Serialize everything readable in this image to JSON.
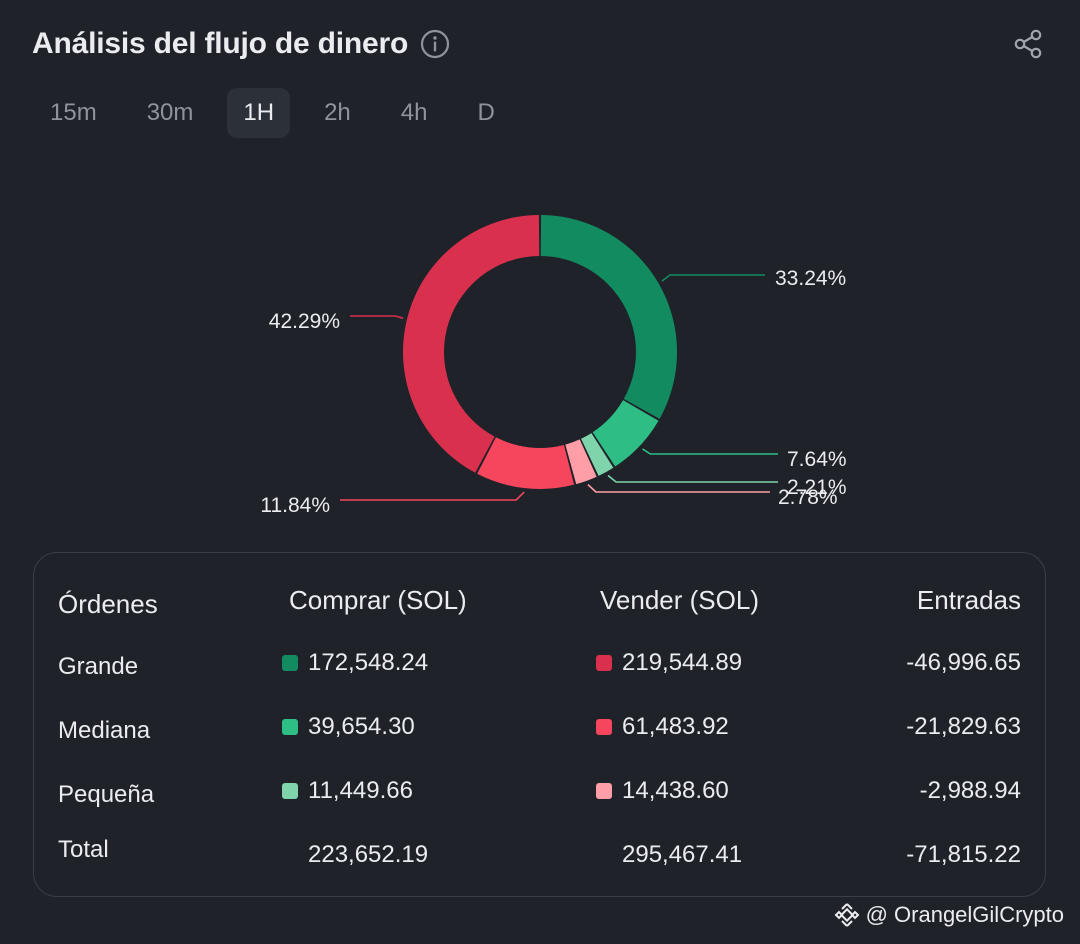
{
  "header": {
    "title": "Análisis del flujo de dinero",
    "info_icon": "info-icon",
    "share_icon": "share-icon"
  },
  "tabs": [
    {
      "label": "15m",
      "active": false
    },
    {
      "label": "30m",
      "active": false
    },
    {
      "label": "1H",
      "active": true
    },
    {
      "label": "2h",
      "active": false
    },
    {
      "label": "4h",
      "active": false
    },
    {
      "label": "D",
      "active": false
    }
  ],
  "colors": {
    "buy_large": "#118b5f",
    "buy_medium": "#2ebd85",
    "buy_small": "#7fd4ab",
    "sell_large": "#d9304e",
    "sell_medium": "#f6465d",
    "sell_small": "#ff9ea6",
    "background": "#1f2229"
  },
  "chart_data": {
    "type": "pie",
    "donut": true,
    "slices": [
      {
        "label": "Comprar Grande",
        "value": 33.24,
        "display": "33.24%",
        "color": "#118b5f"
      },
      {
        "label": "Comprar Mediana",
        "value": 7.64,
        "display": "7.64%",
        "color": "#2ebd85"
      },
      {
        "label": "Comprar Pequeña",
        "value": 2.21,
        "display": "2.21%",
        "color": "#7fd4ab"
      },
      {
        "label": "Vender Pequeña",
        "value": 2.78,
        "display": "2.78%",
        "color": "#ff9ea6"
      },
      {
        "label": "Vender Mediana",
        "value": 11.84,
        "display": "11.84%",
        "color": "#f6465d"
      },
      {
        "label": "Vender Grande",
        "value": 42.29,
        "display": "42.29%",
        "color": "#d9304e"
      }
    ]
  },
  "table": {
    "headers": {
      "orders": "Órdenes",
      "buy": "Comprar (SOL)",
      "sell": "Vender (SOL)",
      "inflow": "Entradas"
    },
    "rows": [
      {
        "label": "Grande",
        "buy": "172,548.24",
        "sell": "219,544.89",
        "inflow": "-46,996.65",
        "buy_color": "#118b5f",
        "sell_color": "#d9304e"
      },
      {
        "label": "Mediana",
        "buy": "39,654.30",
        "sell": "61,483.92",
        "inflow": "-21,829.63",
        "buy_color": "#2ebd85",
        "sell_color": "#f6465d"
      },
      {
        "label": "Pequeña",
        "buy": "11,449.66",
        "sell": "14,438.60",
        "inflow": "-2,988.94",
        "buy_color": "#7fd4ab",
        "sell_color": "#ff9ea6"
      }
    ],
    "total": {
      "label": "Total",
      "buy": "223,652.19",
      "sell": "295,467.41",
      "inflow": "-71,815.22"
    }
  },
  "watermark": {
    "text": "@ OrangelGilCrypto",
    "logo_icon": "binance-logo-icon"
  }
}
